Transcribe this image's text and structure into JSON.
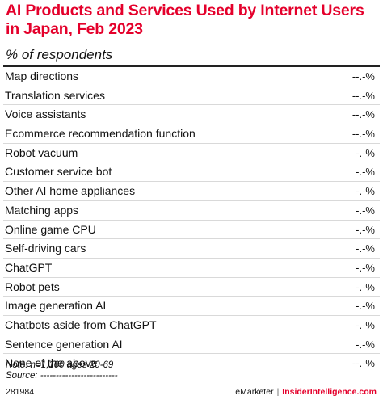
{
  "colors": {
    "title": "#e4002b",
    "text": "#111111",
    "rule": "#222222",
    "divider": "#d9d9d9",
    "brand_accent": "#e4002b"
  },
  "chart_data": {
    "type": "table",
    "title": "AI Products and Services Used by Internet Users in Japan, Feb 2023",
    "subtitle": "% of respondents",
    "rows": [
      {
        "label": "Map directions",
        "value": "--.-%"
      },
      {
        "label": "Translation services",
        "value": "--.-%"
      },
      {
        "label": "Voice assistants",
        "value": "--.-%"
      },
      {
        "label": "Ecommerce recommendation function",
        "value": "--.-%"
      },
      {
        "label": "Robot vacuum",
        "value": "-.-%"
      },
      {
        "label": "Customer service bot",
        "value": "-.-%"
      },
      {
        "label": "Other AI home appliances",
        "value": "-.-%"
      },
      {
        "label": "Matching apps",
        "value": "-.-%"
      },
      {
        "label": "Online game CPU",
        "value": "-.-%"
      },
      {
        "label": "Self-driving cars",
        "value": "-.-%"
      },
      {
        "label": "ChatGPT",
        "value": "-.-%"
      },
      {
        "label": "Robot pets",
        "value": "-.-%"
      },
      {
        "label": "Image generation AI",
        "value": "-.-%"
      },
      {
        "label": "Chatbots aside from ChatGPT",
        "value": "-.-%"
      },
      {
        "label": "Sentence generation AI",
        "value": "-.-%"
      },
      {
        "label": "None of the above",
        "value": "--.-%"
      }
    ],
    "note": "Note: n=1,100 ages 20-69",
    "source": "Source: -------------------------"
  },
  "footer": {
    "chart_id": "281984",
    "brand_emarketer": "eMarketer",
    "separator": "|",
    "brand_ii": "InsiderIntelligence.com"
  }
}
